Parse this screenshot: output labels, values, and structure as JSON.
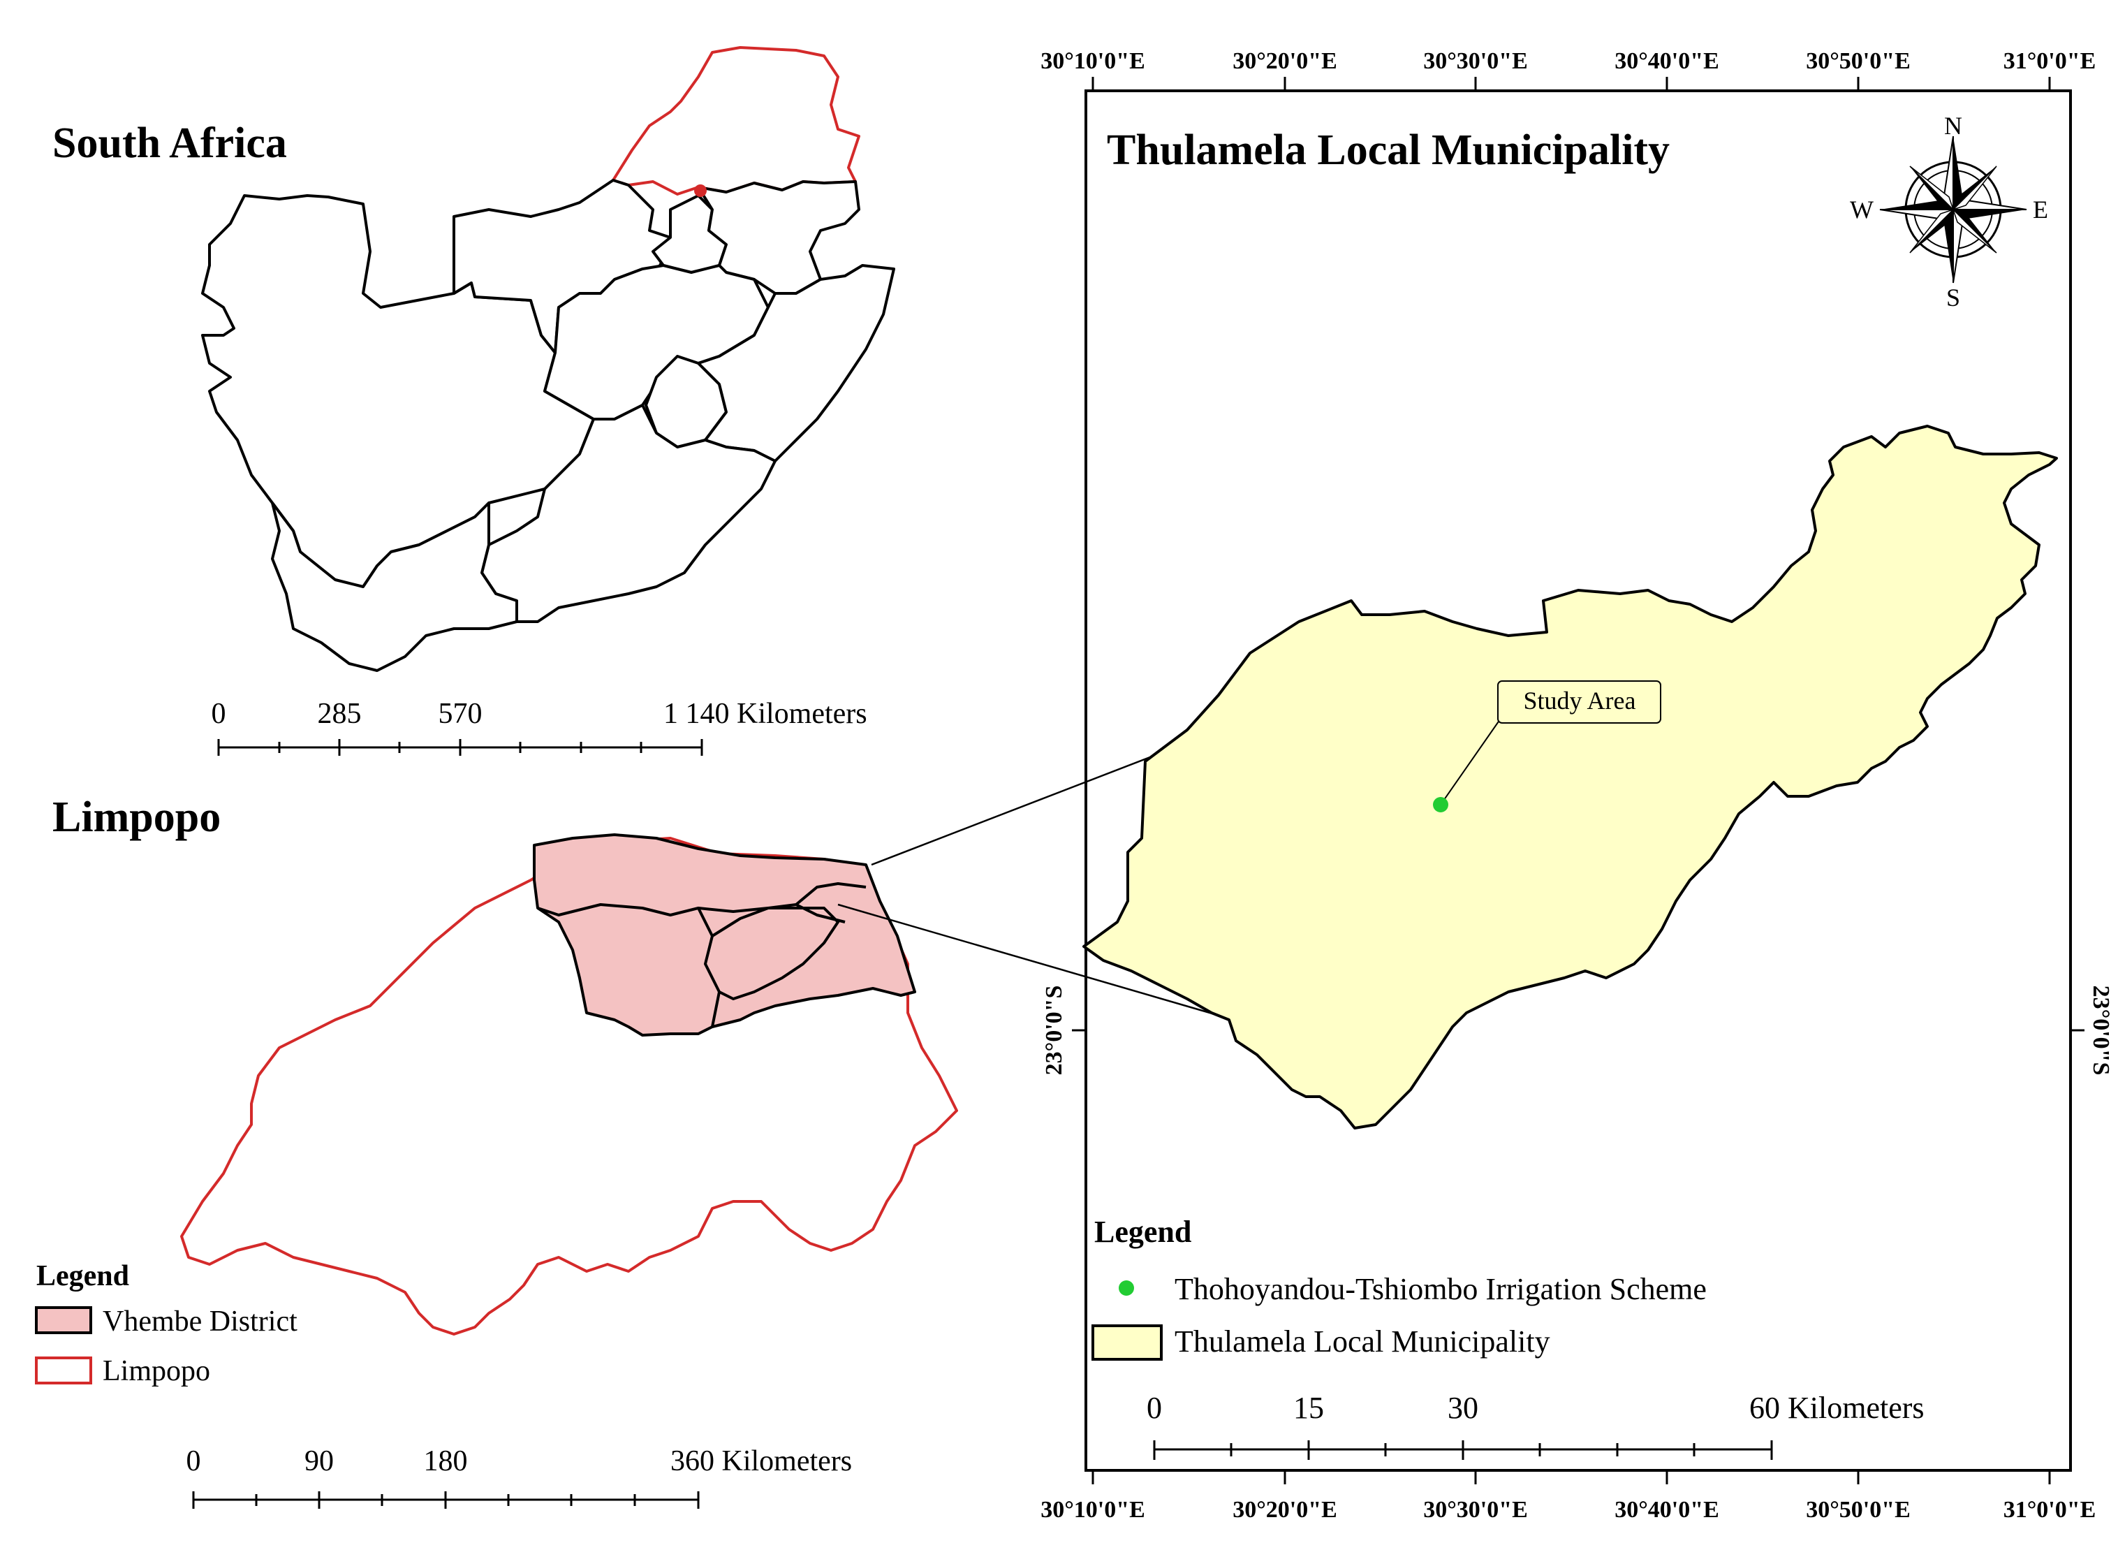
{
  "south_africa_panel": {
    "title": "South Africa",
    "scale_labels": [
      "0",
      "285",
      "570",
      "1 140 Kilometers"
    ]
  },
  "limpopo_panel": {
    "title": "Limpopo",
    "scale_labels": [
      "0",
      "90",
      "180",
      "360 Kilometers"
    ],
    "legend": {
      "title": "Legend",
      "items": [
        {
          "label": "Vhembe District",
          "fill": "#f4c2c2",
          "stroke": "#000000"
        },
        {
          "label": "Limpopo",
          "fill": "#ffffff",
          "stroke": "#d42a2a"
        }
      ]
    }
  },
  "thulamela_panel": {
    "title": "Thulamela Local Municipality",
    "callout": "Study Area",
    "north_arrow": {
      "icon": "compass-rose-icon",
      "n": "N",
      "s": "S",
      "e": "E",
      "w": "W"
    },
    "coords_top": [
      "30°10'0\"E",
      "30°20'0\"E",
      "30°30'0\"E",
      "30°40'0\"E",
      "30°50'0\"E",
      "31°0'0\"E"
    ],
    "coords_bottom": [
      "30°10'0\"E",
      "30°20'0\"E",
      "30°30'0\"E",
      "30°40'0\"E",
      "30°50'0\"E",
      "31°0'0\"E"
    ],
    "coord_left": "23°0'0\"S",
    "coord_right": "23°0'0\"S",
    "scale_labels": [
      "0",
      "15",
      "30",
      "60 Kilometers"
    ],
    "legend": {
      "title": "Legend",
      "items": [
        {
          "label": "Thohoyandou-Tshiombo Irrigation Scheme",
          "color": "#22cc33",
          "icon": "point-icon"
        },
        {
          "label": "Thulamela Local Municipality",
          "fill": "#ffffc8",
          "stroke": "#000000"
        }
      ]
    }
  },
  "colors": {
    "limpopo_outline": "#d42a2a",
    "vhembe_fill": "#f4c2c2",
    "thulamela_fill": "#ffffc8",
    "study_point": "#22cc33"
  }
}
